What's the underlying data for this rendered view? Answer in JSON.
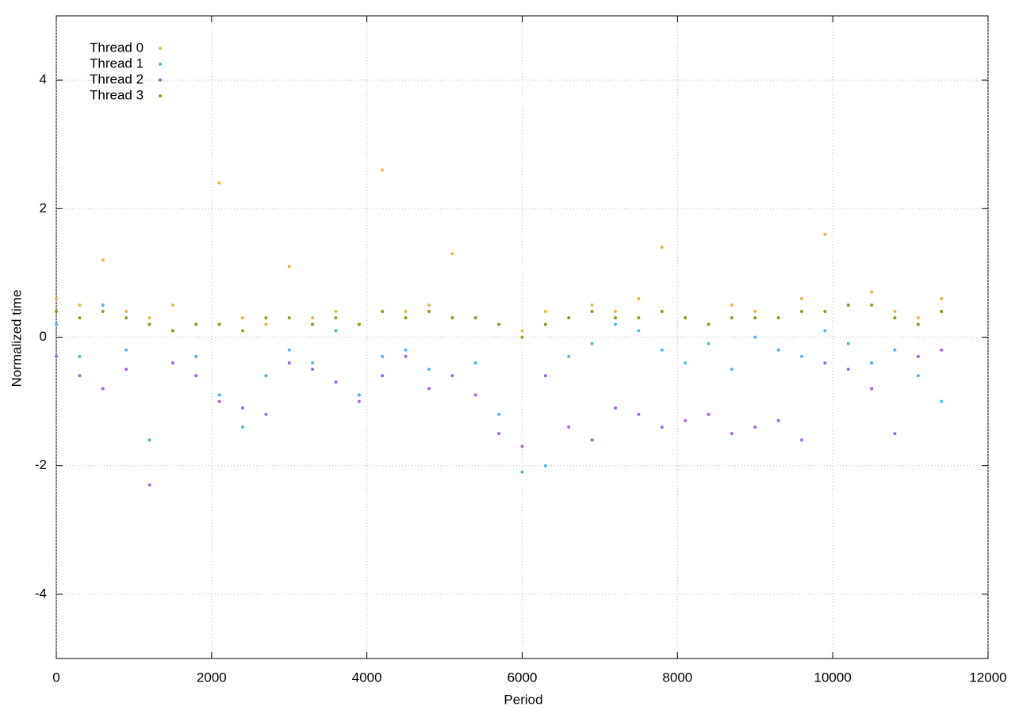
{
  "chart_data": {
    "type": "scatter",
    "x_label": "Period",
    "y_label": "Normalized time",
    "x": [
      0,
      300,
      600,
      900,
      1200,
      1500,
      1800,
      2100,
      2400,
      2700,
      3000,
      3300,
      3600,
      3900,
      4200,
      4500,
      4800,
      5100,
      5400,
      5700,
      6000,
      6300,
      6600,
      6900,
      7200,
      7500,
      7800,
      8100,
      8400,
      8700,
      9000,
      9300,
      9600,
      9900,
      10200,
      10500,
      10800,
      11100,
      11400
    ],
    "series": [
      {
        "name": "Thread 0",
        "color": "#e8b84a",
        "values": [
          0.6,
          0.5,
          1.2,
          0.4,
          0.3,
          0.5,
          0.2,
          2.4,
          0.3,
          0.2,
          1.1,
          0.3,
          0.4,
          0.2,
          2.6,
          0.4,
          0.5,
          1.3,
          0.3,
          0.2,
          0.1,
          0.4,
          0.3,
          0.5,
          0.4,
          0.6,
          1.4,
          0.3,
          0.2,
          0.5,
          0.4,
          0.3,
          0.6,
          1.6,
          0.5,
          0.7,
          0.4,
          0.3,
          0.6
        ]
      },
      {
        "name": "Thread 1",
        "color": "#56b4e9",
        "values": [
          0.2,
          -0.3,
          0.5,
          -0.2,
          -1.6,
          0.1,
          -0.3,
          -0.9,
          -1.4,
          -0.6,
          -0.2,
          -0.4,
          0.1,
          -0.9,
          -0.3,
          -0.2,
          -0.5,
          0.3,
          -0.4,
          -1.2,
          -2.1,
          -2.0,
          -0.3,
          -0.1,
          0.2,
          0.1,
          -0.2,
          -0.4,
          -0.1,
          -0.5,
          0.0,
          -0.2,
          -0.3,
          0.1,
          -0.1,
          -0.4,
          -0.2,
          -0.6,
          -1.0
        ]
      },
      {
        "name": "Thread 2",
        "color": "#a565e8",
        "values": [
          -0.3,
          -0.6,
          -0.8,
          -0.5,
          -2.3,
          -0.4,
          -0.6,
          -1.0,
          -1.1,
          -1.2,
          -0.4,
          -0.5,
          -0.7,
          -1.0,
          -0.6,
          -0.3,
          -0.8,
          -0.6,
          -0.9,
          -1.5,
          -1.7,
          -0.6,
          -1.4,
          -1.6,
          -1.1,
          -1.2,
          -1.4,
          -1.3,
          -1.2,
          -1.5,
          -1.4,
          -1.3,
          -1.6,
          -0.4,
          -0.5,
          -0.8,
          -1.5,
          -0.3,
          -0.2
        ]
      },
      {
        "name": "Thread 3",
        "color": "#8f9a20",
        "values": [
          0.4,
          0.3,
          0.4,
          0.3,
          0.2,
          0.1,
          0.2,
          0.2,
          0.1,
          0.3,
          0.3,
          0.2,
          0.3,
          0.2,
          0.4,
          0.3,
          0.4,
          0.3,
          0.3,
          0.2,
          0.0,
          0.2,
          0.3,
          0.4,
          0.3,
          0.3,
          0.4,
          0.3,
          0.2,
          0.3,
          0.3,
          0.3,
          0.4,
          0.4,
          0.5,
          0.5,
          0.3,
          0.2,
          0.4
        ]
      }
    ],
    "xlim": [
      0,
      12000
    ],
    "xticks": [
      0,
      2000,
      4000,
      6000,
      8000,
      10000,
      12000
    ],
    "ylim": [
      -5,
      5
    ],
    "yticks": [
      -4,
      -2,
      0,
      2,
      4
    ],
    "grid": true,
    "legend": "top-left"
  }
}
